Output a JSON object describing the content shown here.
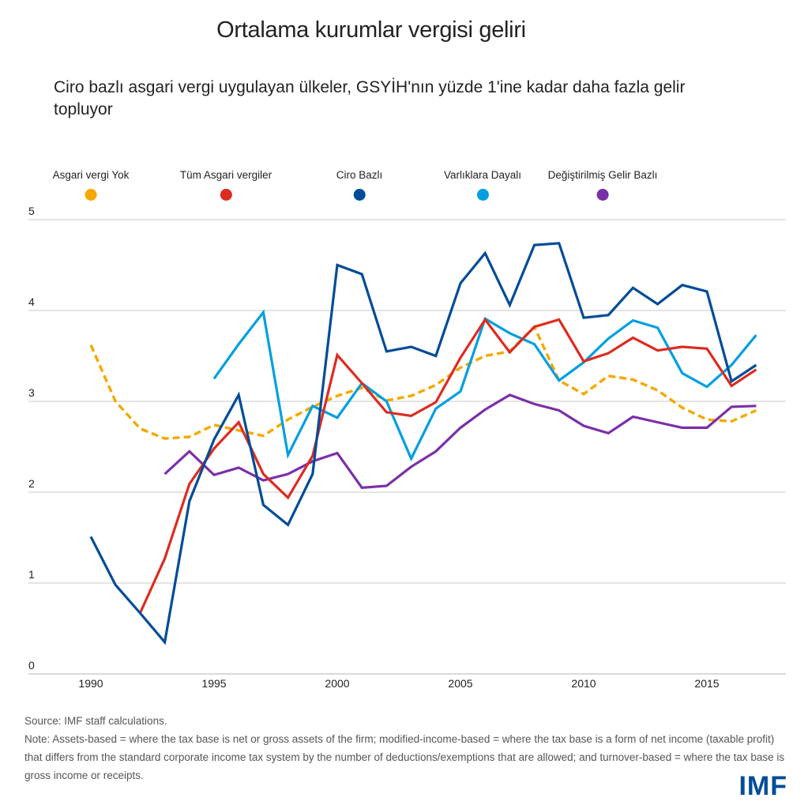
{
  "header": {
    "title": "Ortalama kurumlar vergisi geliri",
    "subtitle": "Ciro bazlı asgari vergi uygulayan ülkeler, GSYİH'nın yüzde 1'ine kadar daha fazla gelir topluyor"
  },
  "legend": [
    {
      "label": "Asgari  vergi Yok",
      "color": "#f5a800"
    },
    {
      "label": "Tüm Asgari vergiler",
      "color": "#dc2c21"
    },
    {
      "label": "Ciro Bazlı",
      "color": "#004c97"
    },
    {
      "label": "Varlıklara Dayalı",
      "color": "#009fdf"
    },
    {
      "label": "Değiştirilmiş Gelir Bazlı",
      "color": "#7b2fa8"
    }
  ],
  "footer": {
    "source": "Source: IMF staff calculations.",
    "note": "Note: Assets-based = where the tax base is net or gross assets of the firm; modified-income-based = where the tax base is a form of net income (taxable profit) that differs from the standard corporate income tax system by the number of deductions/exemptions that are allowed; and turnover-based = where the tax base is gross income or receipts.",
    "logo": "IMF"
  },
  "chart_data": {
    "type": "line",
    "title": "Ortalama kurumlar vergisi geliri",
    "subtitle": "Ciro bazlı asgari vergi uygulayan ülkeler, GSYİH'nın yüzde 1'ine kadar daha fazla gelir topluyor",
    "xlabel": "",
    "ylabel": "",
    "xlim": [
      1990,
      2017
    ],
    "ylim": [
      0,
      5
    ],
    "x_ticks": [
      1990,
      1995,
      2000,
      2005,
      2010,
      2015
    ],
    "y_ticks": [
      0,
      1,
      2,
      3,
      4,
      5
    ],
    "grid": "horizontal",
    "legend_position": "top",
    "series": [
      {
        "name": "Asgari  vergi Yok",
        "color": "#f5a800",
        "style": "dashed",
        "x": [
          1990,
          1991,
          1992,
          1993,
          1994,
          1995,
          1996,
          1997,
          1998,
          1999,
          2000,
          2001,
          2002,
          2003,
          2004,
          2005,
          2006,
          2007,
          2008,
          2009,
          2010,
          2011,
          2012,
          2013,
          2014,
          2015,
          2016,
          2017
        ],
        "values": [
          3.62,
          3.0,
          2.7,
          2.59,
          2.61,
          2.74,
          2.68,
          2.62,
          2.8,
          2.94,
          3.06,
          3.15,
          3.01,
          3.06,
          3.18,
          3.37,
          3.5,
          3.55,
          3.82,
          3.23,
          3.08,
          3.28,
          3.24,
          3.12,
          2.93,
          2.8,
          2.78,
          2.9
        ]
      },
      {
        "name": "Tüm Asgari vergiler",
        "color": "#dc2c21",
        "style": "solid",
        "x": [
          1992,
          1993,
          1994,
          1995,
          1996,
          1997,
          1998,
          1999,
          2000,
          2001,
          2002,
          2003,
          2004,
          2005,
          2006,
          2007,
          2008,
          2009,
          2010,
          2011,
          2012,
          2013,
          2014,
          2015,
          2016,
          2017
        ],
        "values": [
          0.67,
          1.27,
          2.09,
          2.48,
          2.77,
          2.2,
          1.94,
          2.4,
          3.51,
          3.2,
          2.88,
          2.84,
          2.99,
          3.48,
          3.9,
          3.54,
          3.82,
          3.9,
          3.44,
          3.53,
          3.7,
          3.56,
          3.6,
          3.58,
          3.17,
          3.35
        ]
      },
      {
        "name": "Ciro Bazlı",
        "color": "#004c97",
        "style": "solid",
        "x": [
          1990,
          1991,
          1992,
          1993,
          1994,
          1995,
          1996,
          1997,
          1998,
          1999,
          2000,
          2001,
          2002,
          2003,
          2004,
          2005,
          2006,
          2007,
          2008,
          2009,
          2010,
          2011,
          2012,
          2013,
          2014,
          2015,
          2016,
          2017
        ],
        "values": [
          1.51,
          0.98,
          0.67,
          0.35,
          1.9,
          2.58,
          3.07,
          1.86,
          1.64,
          2.2,
          4.5,
          4.4,
          3.55,
          3.6,
          3.5,
          4.3,
          4.63,
          4.06,
          4.72,
          4.74,
          3.92,
          3.95,
          4.25,
          4.07,
          4.28,
          4.21,
          3.22,
          3.4
        ]
      },
      {
        "name": "Varlıklara Dayalı",
        "color": "#009fdf",
        "style": "solid",
        "x": [
          1995,
          1996,
          1997,
          1998,
          1999,
          2000,
          2001,
          2002,
          2003,
          2004,
          2005,
          2006,
          2007,
          2008,
          2009,
          2010,
          2011,
          2012,
          2013,
          2014,
          2015,
          2016,
          2017
        ],
        "values": [
          3.25,
          3.63,
          3.98,
          2.41,
          2.95,
          2.82,
          3.2,
          3.0,
          2.37,
          2.92,
          3.11,
          3.91,
          3.75,
          3.63,
          3.23,
          3.43,
          3.69,
          3.89,
          3.81,
          3.31,
          3.16,
          3.4,
          3.73
        ]
      },
      {
        "name": "Değiştirilmiş Gelir Bazlı",
        "color": "#7b2fa8",
        "style": "solid",
        "x": [
          1993,
          1994,
          1995,
          1996,
          1997,
          1998,
          1999,
          2000,
          2001,
          2002,
          2003,
          2004,
          2005,
          2006,
          2007,
          2008,
          2009,
          2010,
          2011,
          2012,
          2013,
          2014,
          2015,
          2016,
          2017
        ],
        "values": [
          2.2,
          2.45,
          2.19,
          2.27,
          2.13,
          2.2,
          2.34,
          2.43,
          2.05,
          2.07,
          2.28,
          2.45,
          2.71,
          2.91,
          3.07,
          2.97,
          2.9,
          2.73,
          2.65,
          2.83,
          2.77,
          2.71,
          2.71,
          2.94,
          2.95
        ]
      }
    ]
  }
}
